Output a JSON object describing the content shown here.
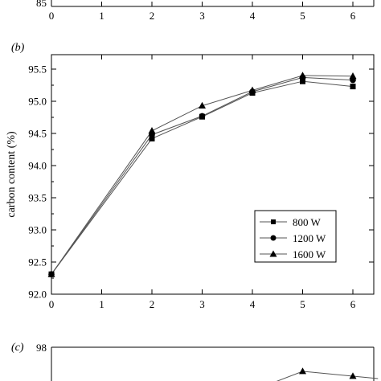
{
  "charts": {
    "top": {
      "tick_labels_x": [
        "0",
        "1",
        "2",
        "3",
        "4",
        "5",
        "6"
      ],
      "visible_y_tick": "85"
    },
    "b": {
      "panel_label": "(b)",
      "ylabel": "carbon content (%)",
      "xticks": [
        "0",
        "1",
        "2",
        "3",
        "4",
        "5",
        "6"
      ],
      "yticks": [
        "92.0",
        "92.5",
        "93.0",
        "93.5",
        "94.0",
        "94.5",
        "95.0",
        "95.5"
      ]
    },
    "c": {
      "panel_label": "(c)",
      "ytick_top": "98"
    }
  },
  "chart_data": [
    {
      "type": "line",
      "x": [
        0,
        1,
        2,
        3,
        4,
        5,
        6
      ],
      "xlim": [
        0,
        6.5
      ],
      "ylim": [
        85,
        null
      ],
      "grid": false,
      "series": [],
      "note_visible": "only bottom axis of upper panel visible"
    },
    {
      "type": "line",
      "title": "",
      "xlabel": "",
      "ylabel": "carbon content (%)",
      "xlim": [
        0,
        6.5
      ],
      "ylim": [
        92.0,
        95.7
      ],
      "grid": false,
      "legend_position": "bottom-right",
      "series": [
        {
          "name": "800 W",
          "marker": "square",
          "x": [
            0,
            2,
            3,
            4,
            5,
            6
          ],
          "y": [
            92.31,
            94.42,
            94.76,
            95.13,
            95.31,
            95.23
          ]
        },
        {
          "name": "1200 W",
          "marker": "circle",
          "x": [
            0,
            2,
            3,
            4,
            5,
            6
          ],
          "y": [
            92.31,
            94.48,
            94.77,
            95.15,
            95.37,
            95.33
          ]
        },
        {
          "name": "1600 W",
          "marker": "triangle",
          "x": [
            0,
            2,
            3,
            4,
            5,
            6
          ],
          "y": [
            92.31,
            94.54,
            94.93,
            95.17,
            95.4,
            95.39
          ]
        }
      ]
    },
    {
      "type": "line",
      "xlim": [
        0,
        6.5
      ],
      "ylim": [
        null,
        98
      ],
      "grid": false,
      "series": [
        {
          "name": "",
          "marker": "triangle",
          "x": [
            5,
            6
          ],
          "y": [
            97.5,
            97.4
          ]
        }
      ]
    }
  ],
  "colors": {
    "axis": "#000000",
    "line": "#555555",
    "marker": "#000000"
  }
}
